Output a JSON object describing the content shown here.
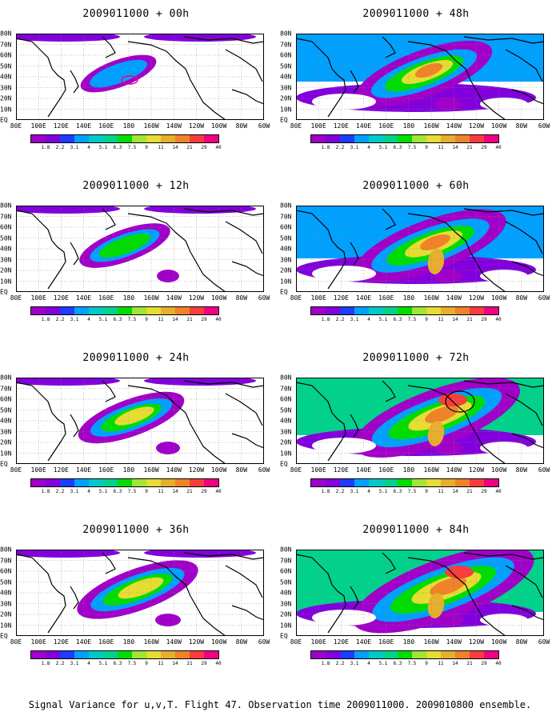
{
  "panels": [
    {
      "title": "2009011000 + 00h",
      "col": 0,
      "row": 0,
      "level": 1
    },
    {
      "title": "2009011000 + 48h",
      "col": 1,
      "row": 0,
      "level": 5
    },
    {
      "title": "2009011000 + 12h",
      "col": 0,
      "row": 1,
      "level": 2
    },
    {
      "title": "2009011000 + 60h",
      "col": 1,
      "row": 1,
      "level": 6
    },
    {
      "title": "2009011000 + 24h",
      "col": 0,
      "row": 2,
      "level": 3
    },
    {
      "title": "2009011000 + 72h",
      "col": 1,
      "row": 2,
      "level": 7
    },
    {
      "title": "2009011000 + 36h",
      "col": 0,
      "row": 3,
      "level": 4
    },
    {
      "title": "2009011000 + 84h",
      "col": 1,
      "row": 3,
      "level": 8
    }
  ],
  "x_ticks": [
    "80E",
    "100E",
    "120E",
    "140E",
    "160E",
    "180",
    "160W",
    "140W",
    "120W",
    "100W",
    "80W",
    "60W"
  ],
  "y_ticks": [
    "EQ",
    "10N",
    "20N",
    "30N",
    "40N",
    "50N",
    "60N",
    "70N",
    "80N"
  ],
  "colorbar_labels": [
    "1.8",
    "2.2",
    "3.1",
    "4",
    "5.1",
    "6.3",
    "7.5",
    "9",
    "11",
    "14",
    "21",
    "29",
    "40"
  ],
  "colorbar_colors": [
    "#a000c8",
    "#8200dc",
    "#1e3cff",
    "#00a0ff",
    "#00c8c8",
    "#00d28c",
    "#00dc00",
    "#a0e632",
    "#e6dc32",
    "#e6af2d",
    "#f08228",
    "#fa3c3c",
    "#f00082"
  ],
  "caption": "Signal Variance for u,v,T. Flight 47. Observation time 2009011000. 2009010800 ensemble."
}
